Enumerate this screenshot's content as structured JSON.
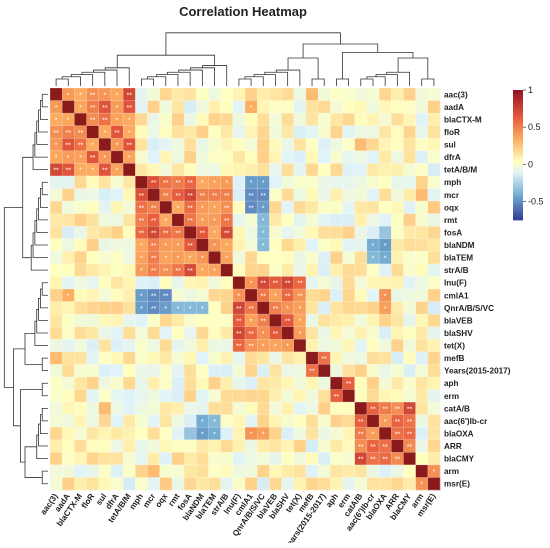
{
  "chart_data": {
    "type": "heatmap",
    "title": "Correlation Heatmap",
    "labels": [
      "aac(3)",
      "aadA",
      "blaCTX-M",
      "floR",
      "sul",
      "dfrA",
      "tetA/B/M",
      "mph",
      "mcr",
      "oqx",
      "rmt",
      "fosA",
      "blaNDM",
      "blaTEM",
      "strA/B",
      "lnu(F)",
      "cmlA1",
      "QnrA/B/S/VC",
      "blaVEB",
      "blaSHV",
      "tet(X)",
      "mefB",
      "Years(2015-2017)",
      "aph",
      "erm",
      "catA/B",
      "aac(6')Ib-cr",
      "blaOXA",
      "ARR",
      "blaCMY",
      "arm",
      "msr(E)"
    ],
    "clusters": [
      [
        0,
        1,
        2,
        3,
        4,
        5,
        6
      ],
      [
        7,
        8,
        9,
        10,
        11,
        12,
        13,
        14
      ],
      [
        15,
        16,
        17,
        18,
        19,
        20
      ],
      [
        21,
        22
      ],
      [
        23,
        24
      ],
      [
        25,
        26,
        27,
        28,
        29
      ],
      [
        30,
        31
      ]
    ],
    "within_cluster_corr": 0.55,
    "cross_cluster_corr": 0.05,
    "exceptions": [
      {
        "pair": [
          7,
          16
        ],
        "r": -0.45
      },
      {
        "pair": [
          8,
          16
        ],
        "r": -0.5
      },
      {
        "pair": [
          9,
          16
        ],
        "r": -0.5
      },
      {
        "pair": [
          7,
          17
        ],
        "r": -0.45
      },
      {
        "pair": [
          8,
          17
        ],
        "r": -0.5
      },
      {
        "pair": [
          9,
          17
        ],
        "r": -0.45
      },
      {
        "pair": [
          10,
          17
        ],
        "r": -0.35
      },
      {
        "pair": [
          11,
          17
        ],
        "r": -0.35
      },
      {
        "pair": [
          12,
          17
        ],
        "r": -0.35
      },
      {
        "pair": [
          12,
          26
        ],
        "r": -0.4
      },
      {
        "pair": [
          13,
          26
        ],
        "r": -0.35
      },
      {
        "pair": [
          12,
          27
        ],
        "r": -0.45
      },
      {
        "pair": [
          13,
          27
        ],
        "r": -0.4
      },
      {
        "pair": [
          11,
          27
        ],
        "r": -0.3
      },
      {
        "pair": [
          16,
          27
        ],
        "r": 0.45
      },
      {
        "pair": [
          17,
          27
        ],
        "r": 0.4
      },
      {
        "pair": [
          16,
          1
        ],
        "r": 0.35
      },
      {
        "pair": [
          0,
          21
        ],
        "r": 0.3
      },
      {
        "pair": [
          30,
          8
        ],
        "r": 0.3
      },
      {
        "pair": [
          31,
          9
        ],
        "r": 0.25
      },
      {
        "pair": [
          25,
          4
        ],
        "r": 0.3
      }
    ],
    "colorbar": {
      "ticks": [
        1,
        0.5,
        0,
        -0.5
      ],
      "range": [
        -0.75,
        1
      ]
    },
    "colors": {
      "low": "#3a4da0",
      "mid": "#ffffbf",
      "high": "#a50026",
      "diag": "#8b1a1a",
      "significant_marker": "#ffffff"
    },
    "significance_markers": [
      "*",
      "**"
    ]
  }
}
